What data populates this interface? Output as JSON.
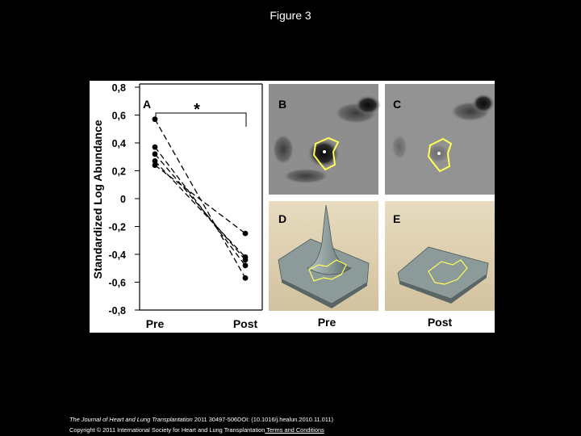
{
  "slide": {
    "title": "Figure 3"
  },
  "footer": {
    "journal": "The Journal of Heart and Lung Transplantation",
    "citation": " 2011 30497-506DOI: (10.1016/j.healun.2010.11.011)",
    "copyright": "Copyright © 2011 International Society for Heart and Lung Transplantation",
    "terms_link": " Terms and Conditions"
  },
  "panels": {
    "b_label": "B",
    "c_label": "C",
    "d_label": "D",
    "e_label": "E",
    "pre_label": "Pre",
    "post_label": "Post"
  },
  "colors": {
    "background": "#000000",
    "spot_outline": "#ffff55",
    "surface": "#8c9a9a",
    "gel_gray": "#8a8a8a"
  },
  "chart_data": {
    "type": "line",
    "panel_label": "A",
    "significance": "*",
    "ylabel": "Standardized Log Abundance",
    "xlabel": "",
    "categories": [
      "Pre",
      "Post"
    ],
    "ylim": [
      -0.8,
      0.8
    ],
    "y_ticks": [
      "0,8",
      "0,6",
      "0,4",
      "0,2",
      "0",
      "-0,2",
      "-0,4",
      "-0,6",
      "-0,8"
    ],
    "y_tick_values": [
      0.8,
      0.6,
      0.4,
      0.2,
      0,
      -0.2,
      -0.4,
      -0.6,
      -0.8
    ],
    "line_style": "dashed",
    "series": [
      {
        "values": [
          0.57,
          -0.57
        ]
      },
      {
        "values": [
          0.37,
          -0.48
        ]
      },
      {
        "values": [
          0.32,
          -0.44
        ]
      },
      {
        "values": [
          0.27,
          -0.42
        ]
      },
      {
        "values": [
          0.24,
          -0.25
        ]
      }
    ]
  }
}
